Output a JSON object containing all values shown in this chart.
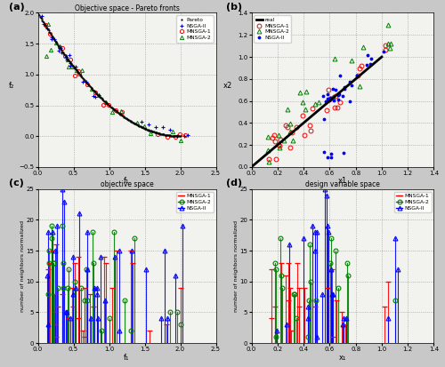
{
  "title_a": "Objective space - Pareto fronts",
  "title_c": "objective space",
  "title_d": "design variable space",
  "xlabel_a": "f₁",
  "ylabel_a": "f₂",
  "xlabel_b": "x1",
  "ylabel_b": "x2",
  "xlabel_c": "f₁",
  "ylabel_c": "number of neighbors normalized",
  "xlabel_d": "x₁",
  "ylabel_d": "number of neighbors normalized",
  "xlim_a": [
    0,
    2.5
  ],
  "ylim_a": [
    -0.5,
    2.0
  ],
  "xlim_b": [
    0,
    1.4
  ],
  "ylim_b": [
    0,
    1.4
  ],
  "xlim_c": [
    0,
    2.5
  ],
  "ylim_c": [
    0,
    25
  ],
  "xlim_d": [
    0,
    1.4
  ],
  "ylim_d": [
    0,
    25
  ],
  "yticks_a": [
    -0.5,
    0.0,
    0.5,
    1.0,
    1.5,
    2.0
  ],
  "xticks_a": [
    0.0,
    0.5,
    1.0,
    1.5,
    2.0,
    2.5
  ],
  "yticks_b": [
    0.0,
    0.2,
    0.4,
    0.6,
    0.8,
    1.0,
    1.2,
    1.4
  ],
  "xticks_b": [
    0.0,
    0.2,
    0.4,
    0.6,
    0.8,
    1.0,
    1.2,
    1.4
  ],
  "yticks_c": [
    0,
    5,
    10,
    15,
    20,
    25
  ],
  "xticks_c": [
    0.0,
    0.5,
    1.0,
    1.5,
    2.0,
    2.5
  ],
  "yticks_d": [
    0,
    5,
    10,
    15,
    20,
    25
  ],
  "xticks_d": [
    0.0,
    0.2,
    0.4,
    0.6,
    0.8,
    1.0,
    1.2,
    1.4
  ]
}
